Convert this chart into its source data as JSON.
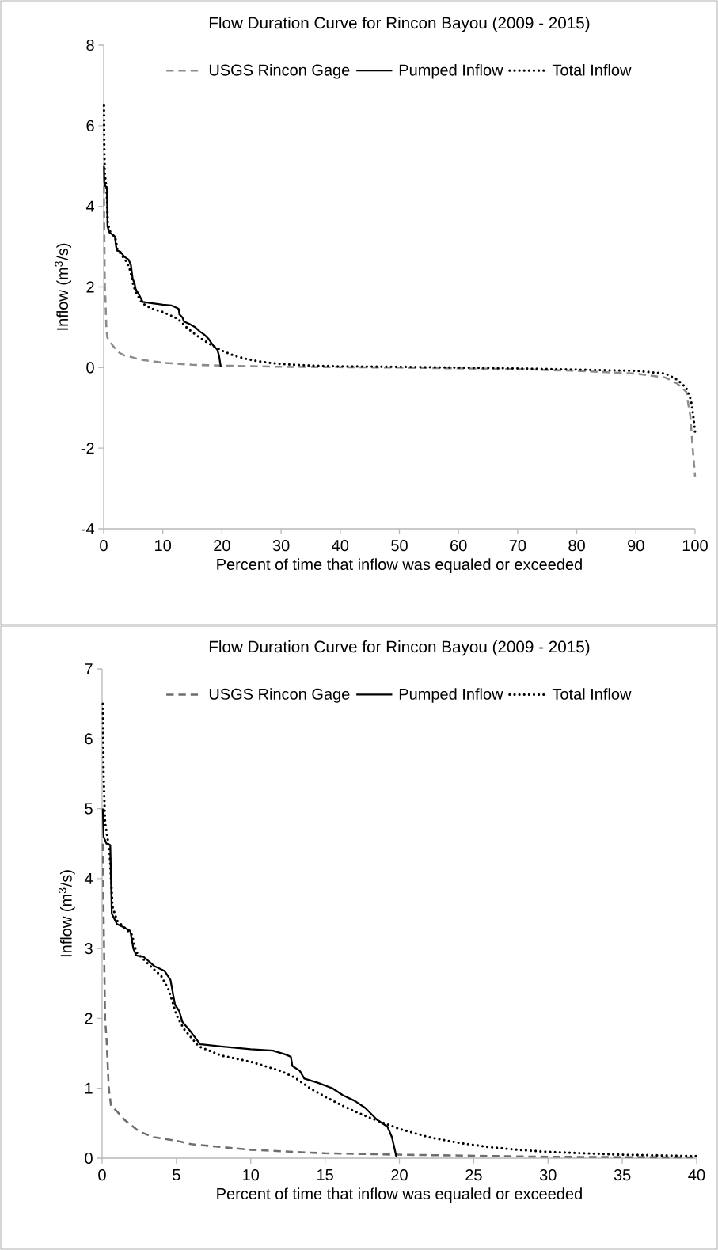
{
  "chart_data": [
    {
      "type": "line",
      "title": "Flow Duration Curve for Rincon Bayou (2009 - 2015)",
      "xlabel": "Percent of time that inflow was equaled or exceeded",
      "ylabel": "Inflow  (m$^{3}$/s)",
      "xlim": [
        0,
        100
      ],
      "ylim": [
        -4,
        8
      ],
      "xticks": [
        0,
        10,
        20,
        30,
        40,
        50,
        60,
        70,
        80,
        90,
        100
      ],
      "yticks": [
        -4,
        -2,
        0,
        2,
        4,
        6,
        8
      ],
      "legend": "top",
      "series": [
        {
          "name": "USGS Rincon Gage",
          "color": "#8c8c8c",
          "line_style": "dashed",
          "x": [
            0.05,
            0.1,
            0.2,
            0.3,
            0.45,
            0.6,
            1.0,
            1.5,
            2.5,
            3.5,
            5,
            6,
            8,
            10,
            12,
            15,
            20,
            30,
            40,
            50,
            60,
            70,
            80,
            90,
            95,
            97,
            98.5,
            99.2,
            99.6,
            100
          ],
          "values": [
            4.5,
            3.5,
            2.0,
            1.7,
            1.0,
            0.75,
            0.67,
            0.55,
            0.38,
            0.3,
            0.25,
            0.2,
            0.16,
            0.12,
            0.1,
            0.07,
            0.05,
            0.02,
            0.01,
            0.0,
            -0.02,
            -0.04,
            -0.08,
            -0.15,
            -0.25,
            -0.4,
            -0.6,
            -1.2,
            -2.0,
            -2.7
          ]
        },
        {
          "name": "Pumped Inflow",
          "color": "#000000",
          "line_style": "solid",
          "x": [
            0.05,
            0.1,
            0.3,
            0.55,
            0.65,
            1.0,
            1.5,
            1.9,
            2.1,
            2.3,
            2.8,
            3.5,
            4.2,
            4.6,
            4.9,
            5.2,
            5.4,
            6.0,
            6.6,
            8,
            10,
            11.5,
            12.4,
            12.7,
            12.8,
            13.3,
            13.6,
            14.5,
            15.5,
            16.2,
            17,
            17.7,
            18.5,
            19.2,
            19.5,
            19.8
          ],
          "values": [
            5.0,
            4.6,
            4.5,
            4.48,
            3.5,
            3.35,
            3.3,
            3.25,
            3.0,
            2.9,
            2.88,
            2.75,
            2.68,
            2.55,
            2.2,
            2.1,
            1.95,
            1.8,
            1.63,
            1.6,
            1.56,
            1.54,
            1.48,
            1.45,
            1.32,
            1.25,
            1.14,
            1.08,
            1.0,
            0.9,
            0.82,
            0.72,
            0.55,
            0.45,
            0.3,
            0.02
          ]
        },
        {
          "name": "Total Inflow",
          "color": "#000000",
          "line_style": "dotted",
          "x": [
            0.05,
            0.1,
            0.2,
            0.5,
            0.7,
            1.0,
            1.5,
            2.0,
            2.3,
            3,
            4,
            4.5,
            5,
            5.5,
            6.5,
            8,
            10,
            12,
            13,
            14,
            15,
            16,
            17,
            18,
            19,
            20,
            22,
            24,
            26,
            28,
            30,
            35,
            40,
            50,
            60,
            70,
            80,
            90,
            95,
            97,
            98.5,
            99.3,
            99.7,
            100
          ],
          "values": [
            6.5,
            5.5,
            4.8,
            4.4,
            3.6,
            3.4,
            3.3,
            3.2,
            2.95,
            2.8,
            2.6,
            2.4,
            2.05,
            1.85,
            1.6,
            1.47,
            1.38,
            1.25,
            1.15,
            1.0,
            0.88,
            0.77,
            0.67,
            0.58,
            0.5,
            0.42,
            0.3,
            0.22,
            0.16,
            0.12,
            0.09,
            0.05,
            0.03,
            0.02,
            0.0,
            -0.02,
            -0.05,
            -0.08,
            -0.15,
            -0.3,
            -0.5,
            -0.8,
            -1.2,
            -1.6
          ]
        }
      ]
    },
    {
      "type": "line",
      "title": "Flow Duration Curve for Rincon Bayou (2009 - 2015)",
      "xlabel": "Percent of time that inflow was equaled or exceeded",
      "ylabel": "Inflow  (m$^{3}$/s)",
      "xlim": [
        0,
        40
      ],
      "ylim": [
        0,
        7
      ],
      "xticks": [
        0,
        5,
        10,
        15,
        20,
        25,
        30,
        35,
        40
      ],
      "yticks": [
        0,
        1,
        2,
        3,
        4,
        5,
        6,
        7
      ],
      "legend": "top",
      "series": [
        {
          "name": "USGS Rincon Gage",
          "color": "#6e6e6e",
          "line_style": "dashed",
          "x": [
            0.05,
            0.1,
            0.2,
            0.3,
            0.45,
            0.6,
            1.0,
            1.5,
            2.5,
            3.5,
            5,
            6,
            8,
            10,
            12,
            15,
            20,
            30,
            40
          ],
          "values": [
            4.5,
            3.5,
            2.0,
            1.7,
            1.0,
            0.75,
            0.67,
            0.55,
            0.38,
            0.3,
            0.25,
            0.2,
            0.16,
            0.12,
            0.1,
            0.07,
            0.05,
            0.02,
            0.01
          ]
        },
        {
          "name": "Pumped Inflow",
          "color": "#000000",
          "line_style": "solid",
          "x": [
            0.05,
            0.1,
            0.3,
            0.55,
            0.65,
            1.0,
            1.5,
            1.9,
            2.1,
            2.3,
            2.8,
            3.5,
            4.2,
            4.6,
            4.9,
            5.2,
            5.4,
            6.0,
            6.6,
            8,
            10,
            11.5,
            12.4,
            12.7,
            12.8,
            13.3,
            13.6,
            14.5,
            15.5,
            16.2,
            17,
            17.7,
            18.5,
            19.2,
            19.5,
            19.8
          ],
          "values": [
            5.0,
            4.6,
            4.5,
            4.48,
            3.5,
            3.35,
            3.3,
            3.25,
            3.0,
            2.9,
            2.88,
            2.75,
            2.68,
            2.55,
            2.2,
            2.1,
            1.95,
            1.8,
            1.63,
            1.6,
            1.56,
            1.54,
            1.48,
            1.45,
            1.32,
            1.25,
            1.14,
            1.08,
            1.0,
            0.9,
            0.82,
            0.72,
            0.55,
            0.45,
            0.3,
            0.02
          ]
        },
        {
          "name": "Total Inflow",
          "color": "#000000",
          "line_style": "dotted",
          "x": [
            0.05,
            0.1,
            0.2,
            0.5,
            0.7,
            1.0,
            1.5,
            2.0,
            2.3,
            3,
            4,
            4.5,
            5,
            5.5,
            6.5,
            8,
            10,
            12,
            13,
            14,
            15,
            16,
            17,
            18,
            19,
            20,
            22,
            24,
            26,
            28,
            30,
            35,
            40
          ],
          "values": [
            6.5,
            5.5,
            4.8,
            4.4,
            3.6,
            3.4,
            3.3,
            3.2,
            2.95,
            2.8,
            2.6,
            2.4,
            2.05,
            1.85,
            1.6,
            1.47,
            1.38,
            1.25,
            1.15,
            1.0,
            0.88,
            0.77,
            0.67,
            0.58,
            0.5,
            0.42,
            0.3,
            0.22,
            0.16,
            0.12,
            0.09,
            0.05,
            0.03
          ]
        }
      ]
    }
  ]
}
